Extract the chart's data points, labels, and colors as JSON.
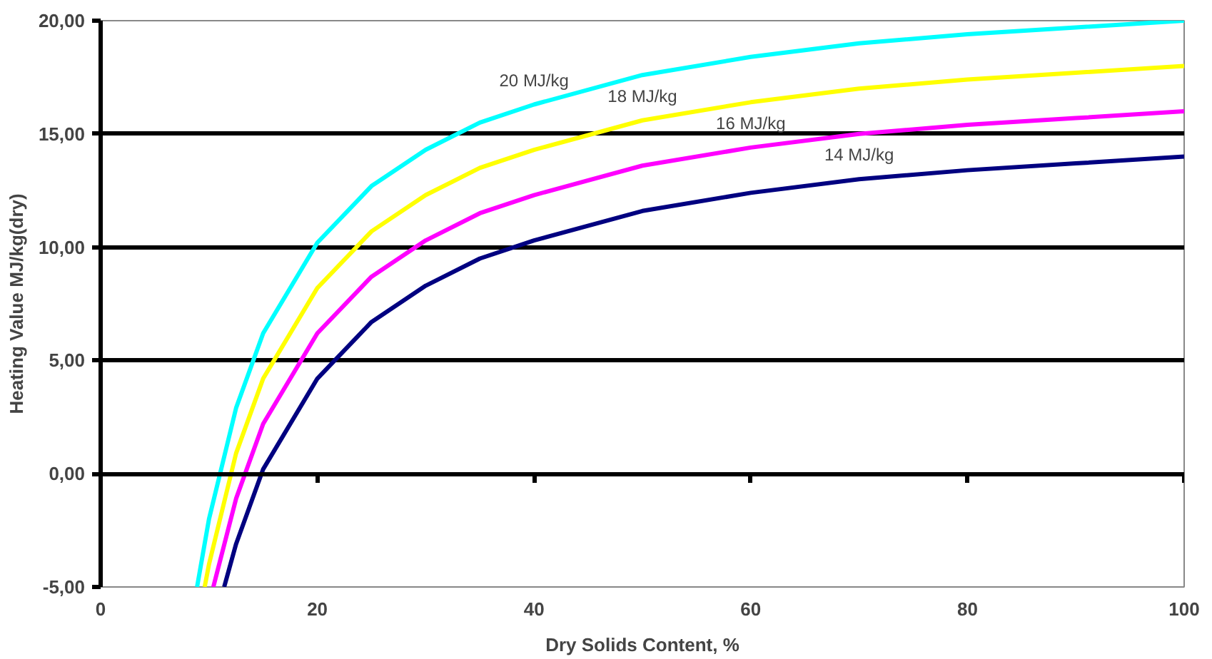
{
  "chart_data": {
    "type": "line",
    "xlabel": "Dry Solids Content, %",
    "ylabel": "Heating Value MJ/kg(dry)",
    "xlim": [
      0,
      100
    ],
    "ylim": [
      -5,
      20
    ],
    "xticks": [
      0,
      20,
      40,
      60,
      80,
      100
    ],
    "yticks": [
      {
        "value": -5,
        "label": "-5,00"
      },
      {
        "value": 0,
        "label": "0,00"
      },
      {
        "value": 5,
        "label": "5,00"
      },
      {
        "value": 10,
        "label": "10,00"
      },
      {
        "value": 15,
        "label": "15,00"
      },
      {
        "value": 20,
        "label": "20,00"
      }
    ],
    "grid": "y",
    "marker": "none",
    "line_style": "solid",
    "series": [
      {
        "color": "#00ffff",
        "x": [
          8.9,
          10,
          12.5,
          15,
          20,
          25,
          30,
          35,
          40,
          50,
          60,
          70,
          80,
          90,
          100
        ],
        "values": [
          -5,
          -2.0,
          2.9,
          6.2,
          10.2,
          12.7,
          14.3,
          15.5,
          16.3,
          17.6,
          18.4,
          19.0,
          19.4,
          19.7,
          20
        ]
      },
      {
        "color": "#ffff00",
        "x": [
          9.6,
          10,
          12.5,
          15,
          20,
          25,
          30,
          35,
          40,
          50,
          60,
          70,
          80,
          90,
          100
        ],
        "values": [
          -5,
          -4.0,
          0.9,
          4.2,
          8.2,
          10.7,
          12.3,
          13.5,
          14.3,
          15.6,
          16.4,
          17.0,
          17.4,
          17.7,
          18
        ]
      },
      {
        "color": "#ff00ff",
        "x": [
          10.4,
          12.5,
          15,
          20,
          25,
          30,
          35,
          40,
          50,
          60,
          70,
          80,
          90,
          100
        ],
        "values": [
          -5,
          -1.1,
          2.2,
          6.2,
          8.7,
          10.3,
          11.5,
          12.3,
          13.6,
          14.4,
          15.0,
          15.4,
          15.7,
          16
        ]
      },
      {
        "color": "#000080",
        "x": [
          11.4,
          12.5,
          15,
          20,
          25,
          30,
          35,
          40,
          50,
          60,
          70,
          80,
          90,
          100
        ],
        "values": [
          -5,
          -3.1,
          0.2,
          4.2,
          6.7,
          8.3,
          9.5,
          10.3,
          11.6,
          12.4,
          13.0,
          13.4,
          13.7,
          14
        ]
      }
    ],
    "annotations": [
      {
        "text": "20 MJ/kg",
        "x": 40,
        "y": 16.3
      },
      {
        "text": "18 MJ/kg",
        "x": 50,
        "y": 15.6
      },
      {
        "text": "16 MJ/kg",
        "x": 60,
        "y": 14.4
      },
      {
        "text": "14 MJ/kg",
        "x": 70,
        "y": 13.0
      }
    ]
  }
}
